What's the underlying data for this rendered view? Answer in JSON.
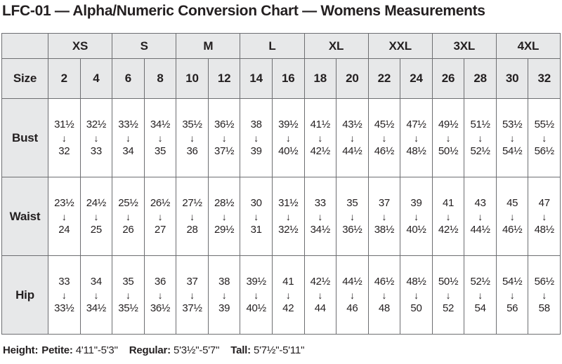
{
  "title": "LFC-01 — Alpha/Numeric Conversion Chart — Womens Measurements",
  "chart_data": {
    "type": "table",
    "title": "LFC-01 — Alpha/Numeric Conversion Chart — Womens Measurements",
    "alpha_groups": [
      "XS",
      "S",
      "M",
      "L",
      "XL",
      "XXL",
      "3XL",
      "4XL"
    ],
    "size_row_label": "Size",
    "numeric_sizes": [
      "2",
      "4",
      "6",
      "8",
      "10",
      "12",
      "14",
      "16",
      "18",
      "20",
      "22",
      "24",
      "26",
      "28",
      "30",
      "32"
    ],
    "measurement_rows": [
      {
        "label": "Bust",
        "ranges": [
          [
            "31½",
            "32"
          ],
          [
            "32½",
            "33"
          ],
          [
            "33½",
            "34"
          ],
          [
            "34½",
            "35"
          ],
          [
            "35½",
            "36"
          ],
          [
            "36½",
            "37½"
          ],
          [
            "38",
            "39"
          ],
          [
            "39½",
            "40½"
          ],
          [
            "41½",
            "42½"
          ],
          [
            "43½",
            "44½"
          ],
          [
            "45½",
            "46½"
          ],
          [
            "47½",
            "48½"
          ],
          [
            "49½",
            "50½"
          ],
          [
            "51½",
            "52½"
          ],
          [
            "53½",
            "54½"
          ],
          [
            "55½",
            "56½"
          ]
        ]
      },
      {
        "label": "Waist",
        "ranges": [
          [
            "23½",
            "24"
          ],
          [
            "24½",
            "25"
          ],
          [
            "25½",
            "26"
          ],
          [
            "26½",
            "27"
          ],
          [
            "27½",
            "28"
          ],
          [
            "28½",
            "29½"
          ],
          [
            "30",
            "31"
          ],
          [
            "31½",
            "32½"
          ],
          [
            "33",
            "34½"
          ],
          [
            "35",
            "36½"
          ],
          [
            "37",
            "38½"
          ],
          [
            "39",
            "40½"
          ],
          [
            "41",
            "42½"
          ],
          [
            "43",
            "44½"
          ],
          [
            "45",
            "46½"
          ],
          [
            "47",
            "48½"
          ]
        ]
      },
      {
        "label": "Hip",
        "ranges": [
          [
            "33",
            "33½"
          ],
          [
            "34",
            "34½"
          ],
          [
            "35",
            "35½"
          ],
          [
            "36",
            "36½"
          ],
          [
            "37",
            "37½"
          ],
          [
            "38",
            "39"
          ],
          [
            "39½",
            "40½"
          ],
          [
            "41",
            "42"
          ],
          [
            "42½",
            "44"
          ],
          [
            "44½",
            "46"
          ],
          [
            "46½",
            "48"
          ],
          [
            "48½",
            "50"
          ],
          [
            "50½",
            "52"
          ],
          [
            "52½",
            "54"
          ],
          [
            "54½",
            "56"
          ],
          [
            "56½",
            "58"
          ]
        ]
      }
    ]
  },
  "footer": {
    "height_label": "Height:",
    "entries": [
      {
        "label": "Petite:",
        "range": "4'11\"-5'3\""
      },
      {
        "label": "Regular:",
        "range": "5'3½\"-5'7\""
      },
      {
        "label": "Tall:",
        "range": "5'7½\"-5'11\""
      }
    ]
  },
  "icons": {
    "down_arrow": "↓"
  },
  "colors": {
    "header_fill": "#e7e8e9",
    "border": "#6d6e71",
    "text": "#231f20"
  }
}
